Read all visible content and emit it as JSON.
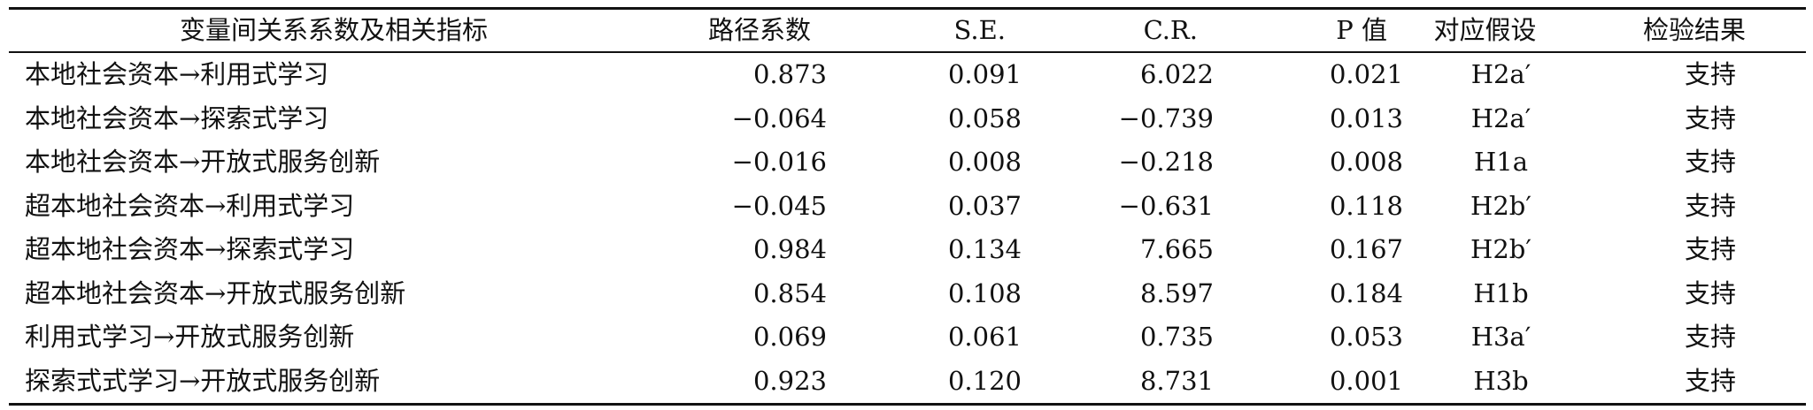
{
  "table": {
    "headers": [
      "变量间关系系数及相关指标",
      "路径系数",
      "S.E.",
      "C.R.",
      "P 值",
      "对应假设",
      "检验结果"
    ],
    "rows": [
      {
        "relation": "本地社会资本→利用式学习",
        "path": "0.873",
        "se": "0.091",
        "cr": "6.022",
        "p": "0.021",
        "hyp": "H2a′",
        "result": "支持"
      },
      {
        "relation": "本地社会资本→探索式学习",
        "path": "−0.064",
        "se": "0.058",
        "cr": "−0.739",
        "p": "0.013",
        "hyp": "H2a′",
        "result": "支持"
      },
      {
        "relation": "本地社会资本→开放式服务创新",
        "path": "−0.016",
        "se": "0.008",
        "cr": "−0.218",
        "p": "0.008",
        "hyp": "H1a",
        "result": "支持"
      },
      {
        "relation": "超本地社会资本→利用式学习",
        "path": "−0.045",
        "se": "0.037",
        "cr": "−0.631",
        "p": "0.118",
        "hyp": "H2b′",
        "result": "支持"
      },
      {
        "relation": "超本地社会资本→探索式学习",
        "path": "0.984",
        "se": "0.134",
        "cr": "7.665",
        "p": "0.167",
        "hyp": "H2b′",
        "result": "支持"
      },
      {
        "relation": "超本地社会资本→开放式服务创新",
        "path": "0.854",
        "se": "0.108",
        "cr": "8.597",
        "p": "0.184",
        "hyp": "H1b",
        "result": "支持"
      },
      {
        "relation": "利用式学习→开放式服务创新",
        "path": "0.069",
        "se": "0.061",
        "cr": "0.735",
        "p": "0.053",
        "hyp": "H3a′",
        "result": "支持"
      },
      {
        "relation": "探索式式学习→开放式服务创新",
        "path": "0.923",
        "se": "0.120",
        "cr": "8.731",
        "p": "0.001",
        "hyp": "H3b",
        "result": "支持"
      }
    ]
  }
}
